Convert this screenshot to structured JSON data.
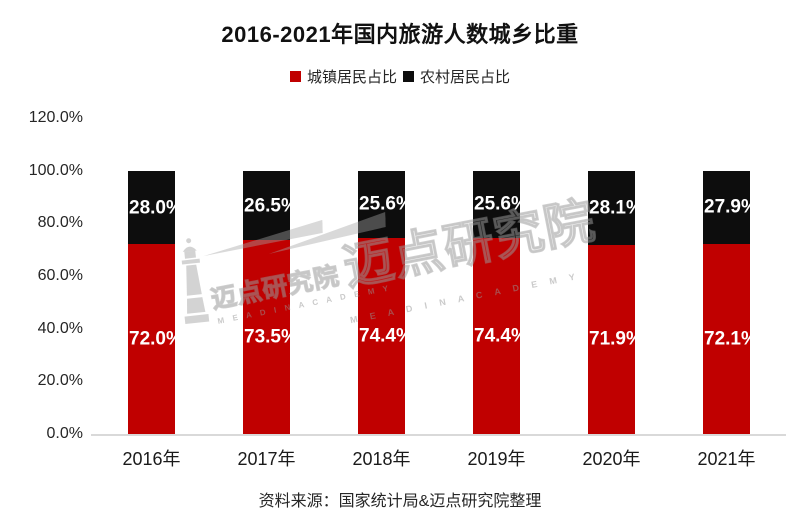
{
  "title": "2016-2021年国内旅游人数城乡比重",
  "legend": [
    {
      "label": "城镇居民占比",
      "color": "#c00000"
    },
    {
      "label": "农村居民占比",
      "color": "#0d0d0d"
    }
  ],
  "source": "资料来源：国家统计局&迈点研究院整理",
  "watermark": {
    "text": "迈点研究院",
    "subtext": "M E A D I N   A C A D E M Y"
  },
  "chart_data": {
    "type": "bar",
    "stacked": true,
    "categories": [
      "2016年",
      "2017年",
      "2018年",
      "2019年",
      "2020年",
      "2021年"
    ],
    "series": [
      {
        "name": "城镇居民占比",
        "color": "#c00000",
        "values": [
          72.0,
          73.5,
          74.4,
          74.4,
          71.9,
          72.1
        ]
      },
      {
        "name": "农村居民占比",
        "color": "#0d0d0d",
        "values": [
          28.0,
          26.5,
          25.6,
          25.6,
          28.1,
          27.9
        ]
      }
    ],
    "title": "2016-2021年国内旅游人数城乡比重",
    "xlabel": "",
    "ylabel": "",
    "ylim": [
      0,
      120
    ],
    "ytick_step": 20,
    "ytick_labels": [
      "0.0%",
      "20.0%",
      "40.0%",
      "60.0%",
      "80.0%",
      "100.0%",
      "120.0%"
    ],
    "value_suffix": "%",
    "grid": false,
    "legend_position": "top"
  }
}
